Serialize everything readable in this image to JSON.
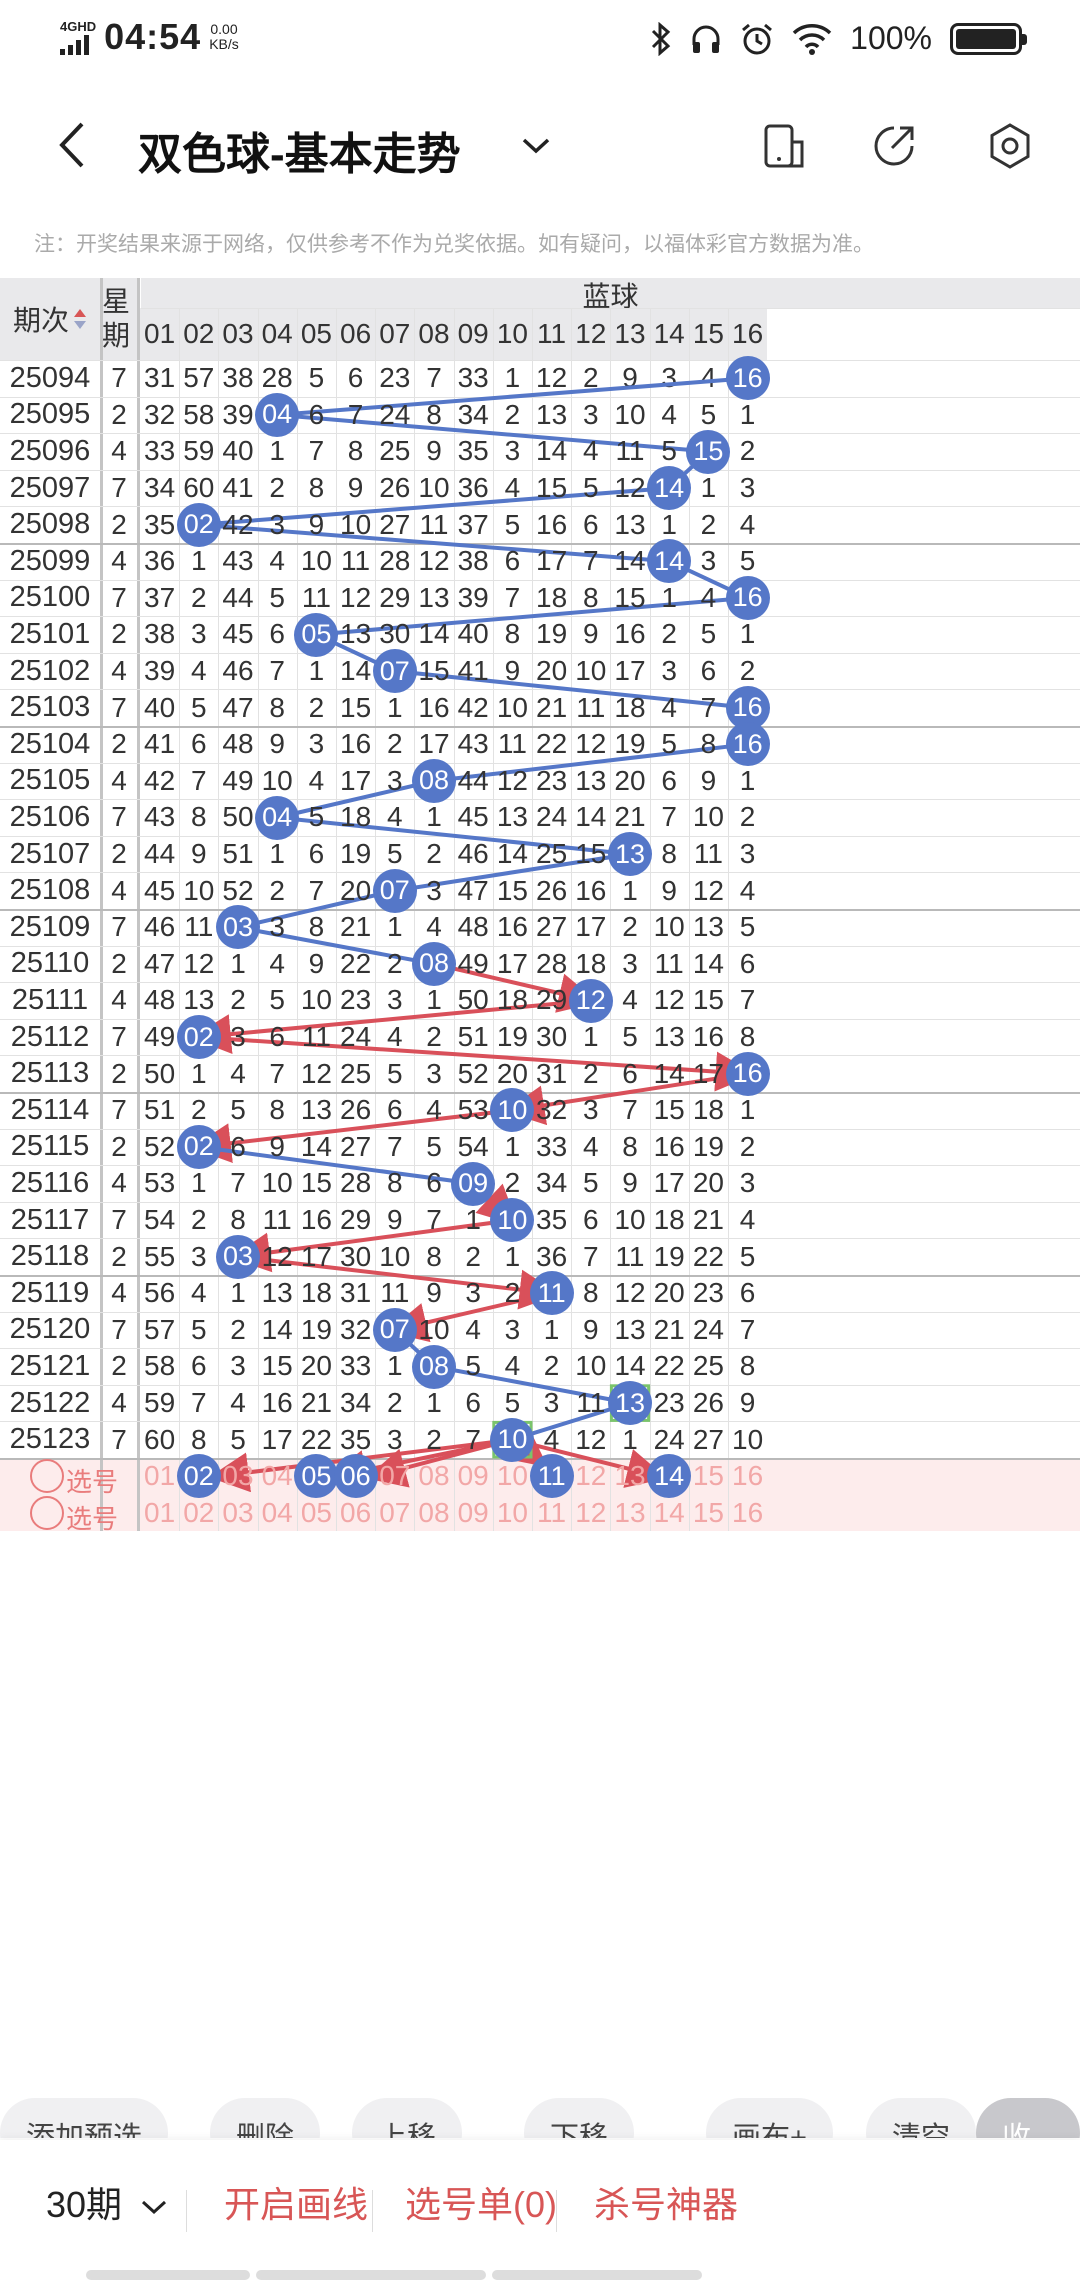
{
  "status_bar": {
    "network": "4GHD",
    "time": "04:54",
    "speed_value": "0.00",
    "speed_unit": "KB/s",
    "battery": "100%"
  },
  "header": {
    "title": "双色球-基本走势"
  },
  "notice": "注：开奖结果来源于网络，仅供参考不作为兑奖依据。如有疑问，以福体彩官方数据为准。",
  "table": {
    "period_header": "期次",
    "weekday_header": "星期",
    "blue_header": "蓝球",
    "columns": [
      "01",
      "02",
      "03",
      "04",
      "05",
      "06",
      "07",
      "08",
      "09",
      "10",
      "11",
      "12",
      "13",
      "14",
      "15",
      "16"
    ],
    "rows": [
      {
        "period": "25094",
        "weekday": "7",
        "cells": [
          "31",
          "57",
          "38",
          "28",
          "5",
          "6",
          "23",
          "7",
          "33",
          "1",
          "12",
          "2",
          "9",
          "3",
          "4",
          "16"
        ],
        "hit": 16
      },
      {
        "period": "25095",
        "weekday": "2",
        "cells": [
          "32",
          "58",
          "39",
          "04",
          "6",
          "7",
          "24",
          "8",
          "34",
          "2",
          "13",
          "3",
          "10",
          "4",
          "5",
          "1"
        ],
        "hit": 4
      },
      {
        "period": "25096",
        "weekday": "4",
        "cells": [
          "33",
          "59",
          "40",
          "1",
          "7",
          "8",
          "25",
          "9",
          "35",
          "3",
          "14",
          "4",
          "11",
          "5",
          "15",
          "2"
        ],
        "hit": 15
      },
      {
        "period": "25097",
        "weekday": "7",
        "cells": [
          "34",
          "60",
          "41",
          "2",
          "8",
          "9",
          "26",
          "10",
          "36",
          "4",
          "15",
          "5",
          "12",
          "14",
          "1",
          "3"
        ],
        "hit": 14
      },
      {
        "period": "25098",
        "weekday": "2",
        "cells": [
          "35",
          "02",
          "42",
          "3",
          "9",
          "10",
          "27",
          "11",
          "37",
          "5",
          "16",
          "6",
          "13",
          "1",
          "2",
          "4"
        ],
        "hit": 2
      },
      {
        "period": "25099",
        "weekday": "4",
        "cells": [
          "36",
          "1",
          "43",
          "4",
          "10",
          "11",
          "28",
          "12",
          "38",
          "6",
          "17",
          "7",
          "14",
          "14",
          "3",
          "5"
        ],
        "hit": 14
      },
      {
        "period": "25100",
        "weekday": "7",
        "cells": [
          "37",
          "2",
          "44",
          "5",
          "11",
          "12",
          "29",
          "13",
          "39",
          "7",
          "18",
          "8",
          "15",
          "1",
          "4",
          "16"
        ],
        "hit": 16
      },
      {
        "period": "25101",
        "weekday": "2",
        "cells": [
          "38",
          "3",
          "45",
          "6",
          "05",
          "13",
          "30",
          "14",
          "40",
          "8",
          "19",
          "9",
          "16",
          "2",
          "5",
          "1"
        ],
        "hit": 5
      },
      {
        "period": "25102",
        "weekday": "4",
        "cells": [
          "39",
          "4",
          "46",
          "7",
          "1",
          "14",
          "07",
          "15",
          "41",
          "9",
          "20",
          "10",
          "17",
          "3",
          "6",
          "2"
        ],
        "hit": 7
      },
      {
        "period": "25103",
        "weekday": "7",
        "cells": [
          "40",
          "5",
          "47",
          "8",
          "2",
          "15",
          "1",
          "16",
          "42",
          "10",
          "21",
          "11",
          "18",
          "4",
          "7",
          "16"
        ],
        "hit": 16
      },
      {
        "period": "25104",
        "weekday": "2",
        "cells": [
          "41",
          "6",
          "48",
          "9",
          "3",
          "16",
          "2",
          "17",
          "43",
          "11",
          "22",
          "12",
          "19",
          "5",
          "8",
          "16"
        ],
        "hit": 16
      },
      {
        "period": "25105",
        "weekday": "4",
        "cells": [
          "42",
          "7",
          "49",
          "10",
          "4",
          "17",
          "3",
          "08",
          "44",
          "12",
          "23",
          "13",
          "20",
          "6",
          "9",
          "1"
        ],
        "hit": 8
      },
      {
        "period": "25106",
        "weekday": "7",
        "cells": [
          "43",
          "8",
          "50",
          "04",
          "5",
          "18",
          "4",
          "1",
          "45",
          "13",
          "24",
          "14",
          "21",
          "7",
          "10",
          "2"
        ],
        "hit": 4
      },
      {
        "period": "25107",
        "weekday": "2",
        "cells": [
          "44",
          "9",
          "51",
          "1",
          "6",
          "19",
          "5",
          "2",
          "46",
          "14",
          "25",
          "15",
          "13",
          "8",
          "11",
          "3"
        ],
        "hit": 13
      },
      {
        "period": "25108",
        "weekday": "4",
        "cells": [
          "45",
          "10",
          "52",
          "2",
          "7",
          "20",
          "07",
          "3",
          "47",
          "15",
          "26",
          "16",
          "1",
          "9",
          "12",
          "4"
        ],
        "hit": 7
      },
      {
        "period": "25109",
        "weekday": "7",
        "cells": [
          "46",
          "11",
          "03",
          "3",
          "8",
          "21",
          "1",
          "4",
          "48",
          "16",
          "27",
          "17",
          "2",
          "10",
          "13",
          "5"
        ],
        "hit": 3
      },
      {
        "period": "25110",
        "weekday": "2",
        "cells": [
          "47",
          "12",
          "1",
          "4",
          "9",
          "22",
          "2",
          "08",
          "49",
          "17",
          "28",
          "18",
          "3",
          "11",
          "14",
          "6"
        ],
        "hit": 8
      },
      {
        "period": "25111",
        "weekday": "4",
        "cells": [
          "48",
          "13",
          "2",
          "5",
          "10",
          "23",
          "3",
          "1",
          "50",
          "18",
          "29",
          "12",
          "4",
          "12",
          "15",
          "7"
        ],
        "hit": 12
      },
      {
        "period": "25112",
        "weekday": "7",
        "cells": [
          "49",
          "02",
          "3",
          "6",
          "11",
          "24",
          "4",
          "2",
          "51",
          "19",
          "30",
          "1",
          "5",
          "13",
          "16",
          "8"
        ],
        "hit": 2
      },
      {
        "period": "25113",
        "weekday": "2",
        "cells": [
          "50",
          "1",
          "4",
          "7",
          "12",
          "25",
          "5",
          "3",
          "52",
          "20",
          "31",
          "2",
          "6",
          "14",
          "17",
          "16"
        ],
        "hit": 16
      },
      {
        "period": "25114",
        "weekday": "7",
        "cells": [
          "51",
          "2",
          "5",
          "8",
          "13",
          "26",
          "6",
          "4",
          "53",
          "10",
          "32",
          "3",
          "7",
          "15",
          "18",
          "1"
        ],
        "hit": 10
      },
      {
        "period": "25115",
        "weekday": "2",
        "cells": [
          "52",
          "02",
          "6",
          "9",
          "14",
          "27",
          "7",
          "5",
          "54",
          "1",
          "33",
          "4",
          "8",
          "16",
          "19",
          "2"
        ],
        "hit": 2
      },
      {
        "period": "25116",
        "weekday": "4",
        "cells": [
          "53",
          "1",
          "7",
          "10",
          "15",
          "28",
          "8",
          "6",
          "09",
          "2",
          "34",
          "5",
          "9",
          "17",
          "20",
          "3"
        ],
        "hit": 9
      },
      {
        "period": "25117",
        "weekday": "7",
        "cells": [
          "54",
          "2",
          "8",
          "11",
          "16",
          "29",
          "9",
          "7",
          "1",
          "10",
          "35",
          "6",
          "10",
          "18",
          "21",
          "4"
        ],
        "hit": 10
      },
      {
        "period": "25118",
        "weekday": "2",
        "cells": [
          "55",
          "3",
          "03",
          "12",
          "17",
          "30",
          "10",
          "8",
          "2",
          "1",
          "36",
          "7",
          "11",
          "19",
          "22",
          "5"
        ],
        "hit": 3
      },
      {
        "period": "25119",
        "weekday": "4",
        "cells": [
          "56",
          "4",
          "1",
          "13",
          "18",
          "31",
          "11",
          "9",
          "3",
          "2",
          "11",
          "8",
          "12",
          "20",
          "23",
          "6"
        ],
        "hit": 11
      },
      {
        "period": "25120",
        "weekday": "7",
        "cells": [
          "57",
          "5",
          "2",
          "14",
          "19",
          "32",
          "07",
          "10",
          "4",
          "3",
          "1",
          "9",
          "13",
          "21",
          "24",
          "7"
        ],
        "hit": 7
      },
      {
        "period": "25121",
        "weekday": "2",
        "cells": [
          "58",
          "6",
          "3",
          "15",
          "20",
          "33",
          "1",
          "08",
          "5",
          "4",
          "2",
          "10",
          "14",
          "22",
          "25",
          "8"
        ],
        "hit": 8
      },
      {
        "period": "25122",
        "weekday": "4",
        "cells": [
          "59",
          "7",
          "4",
          "16",
          "21",
          "34",
          "2",
          "1",
          "6",
          "5",
          "3",
          "11",
          "13",
          "23",
          "26",
          "9"
        ],
        "hit": 13
      },
      {
        "period": "25123",
        "weekday": "7",
        "cells": [
          "60",
          "8",
          "5",
          "17",
          "22",
          "35",
          "3",
          "2",
          "7",
          "10",
          "4",
          "12",
          "1",
          "24",
          "27",
          "10"
        ],
        "hit": 10
      }
    ],
    "pick_label": "选号",
    "pick1_selected": [
      2,
      5,
      6,
      11,
      14
    ]
  },
  "actions": [
    "添加预选",
    "删除",
    "上移",
    "下移",
    "画布+",
    "清空",
    "收起"
  ],
  "bottom_bar": {
    "period_select": "30期",
    "draw_line": "开启画线",
    "pick_list": "选号单(0)",
    "kill_tool": "杀号神器"
  },
  "colors": {
    "ball": "#5577c8",
    "line_blue": "#5577c8",
    "line_red": "#d9505a",
    "accent_red": "#d85656",
    "header_bg": "#e9e9eb",
    "pick_bg": "#fdecec",
    "box_green": "#7ac46b"
  }
}
